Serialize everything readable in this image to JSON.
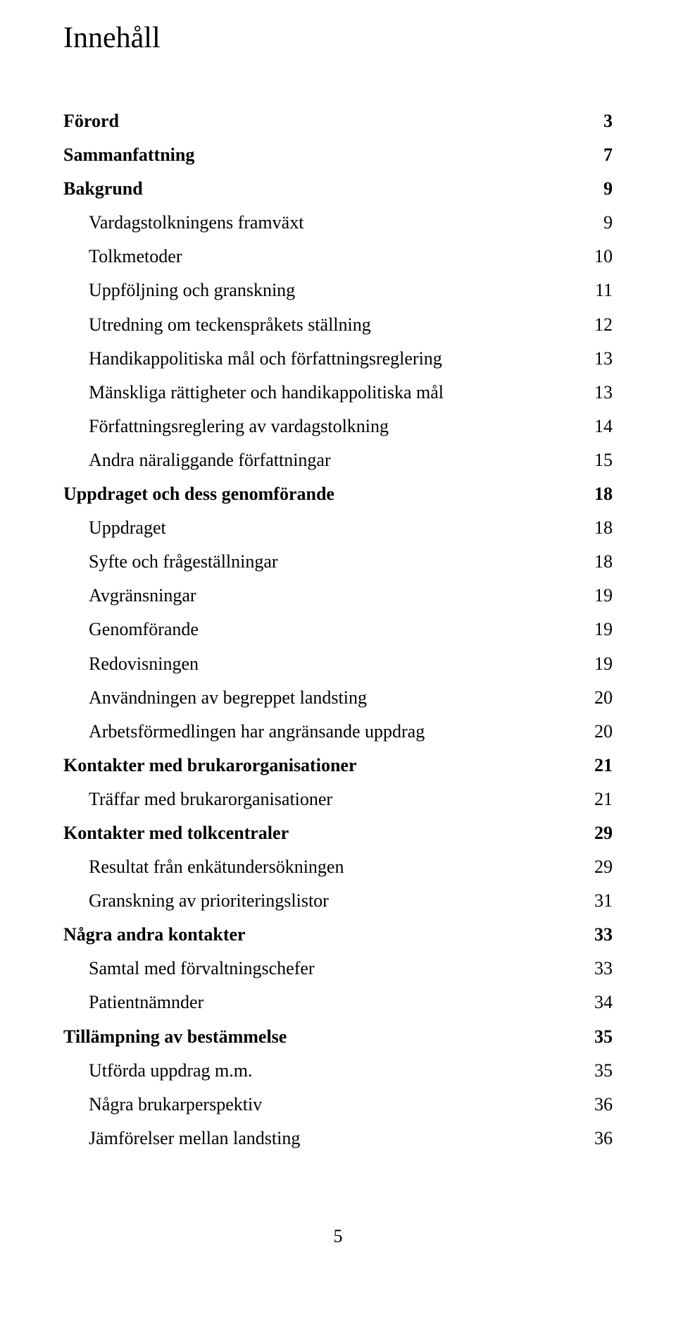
{
  "colors": {
    "text": "#000000",
    "background": "#ffffff"
  },
  "typography": {
    "font_family": "Times New Roman",
    "title_fontsize_pt": 32,
    "body_fontsize_pt": 19,
    "line_height": 1.85
  },
  "title": "Innehåll",
  "entries": [
    {
      "label": "Förord",
      "page": "3",
      "bold": true,
      "indent": false
    },
    {
      "label": "Sammanfattning",
      "page": "7",
      "bold": true,
      "indent": false
    },
    {
      "label": "Bakgrund",
      "page": "9",
      "bold": true,
      "indent": false
    },
    {
      "label": "Vardagstolkningens framväxt",
      "page": "9",
      "bold": false,
      "indent": true
    },
    {
      "label": "Tolkmetoder",
      "page": "10",
      "bold": false,
      "indent": true
    },
    {
      "label": "Uppföljning och granskning",
      "page": "11",
      "bold": false,
      "indent": true
    },
    {
      "label": "Utredning om teckenspråkets ställning",
      "page": "12",
      "bold": false,
      "indent": true
    },
    {
      "label": "Handikappolitiska mål och författningsreglering",
      "page": "13",
      "bold": false,
      "indent": true
    },
    {
      "label": "Mänskliga rättigheter och handikappolitiska mål",
      "page": "13",
      "bold": false,
      "indent": true
    },
    {
      "label": "Författningsreglering av vardagstolkning",
      "page": "14",
      "bold": false,
      "indent": true
    },
    {
      "label": "Andra näraliggande författningar",
      "page": "15",
      "bold": false,
      "indent": true
    },
    {
      "label": "Uppdraget och dess genomförande",
      "page": "18",
      "bold": true,
      "indent": false
    },
    {
      "label": "Uppdraget",
      "page": "18",
      "bold": false,
      "indent": true
    },
    {
      "label": "Syfte och frågeställningar",
      "page": "18",
      "bold": false,
      "indent": true
    },
    {
      "label": "Avgränsningar",
      "page": "19",
      "bold": false,
      "indent": true
    },
    {
      "label": "Genomförande",
      "page": "19",
      "bold": false,
      "indent": true
    },
    {
      "label": "Redovisningen",
      "page": "19",
      "bold": false,
      "indent": true
    },
    {
      "label": "Användningen av begreppet landsting",
      "page": "20",
      "bold": false,
      "indent": true
    },
    {
      "label": "Arbetsförmedlingen har angränsande uppdrag",
      "page": "20",
      "bold": false,
      "indent": true
    },
    {
      "label": "Kontakter med brukarorganisationer",
      "page": "21",
      "bold": true,
      "indent": false
    },
    {
      "label": "Träffar med brukarorganisationer",
      "page": "21",
      "bold": false,
      "indent": true
    },
    {
      "label": "Kontakter med tolkcentraler",
      "page": "29",
      "bold": true,
      "indent": false
    },
    {
      "label": "Resultat från enkätundersökningen",
      "page": "29",
      "bold": false,
      "indent": true
    },
    {
      "label": "Granskning av prioriteringslistor",
      "page": "31",
      "bold": false,
      "indent": true
    },
    {
      "label": "Några andra kontakter",
      "page": "33",
      "bold": true,
      "indent": false
    },
    {
      "label": "Samtal med förvaltningschefer",
      "page": "33",
      "bold": false,
      "indent": true
    },
    {
      "label": "Patientnämnder",
      "page": "34",
      "bold": false,
      "indent": true
    },
    {
      "label": "Tillämpning av bestämmelse",
      "page": "35",
      "bold": true,
      "indent": false
    },
    {
      "label": "Utförda uppdrag m.m.",
      "page": "35",
      "bold": false,
      "indent": true
    },
    {
      "label": "Några brukarperspektiv",
      "page": "36",
      "bold": false,
      "indent": true
    },
    {
      "label": "Jämförelser mellan landsting",
      "page": "36",
      "bold": false,
      "indent": true
    }
  ],
  "footer_page": "5"
}
